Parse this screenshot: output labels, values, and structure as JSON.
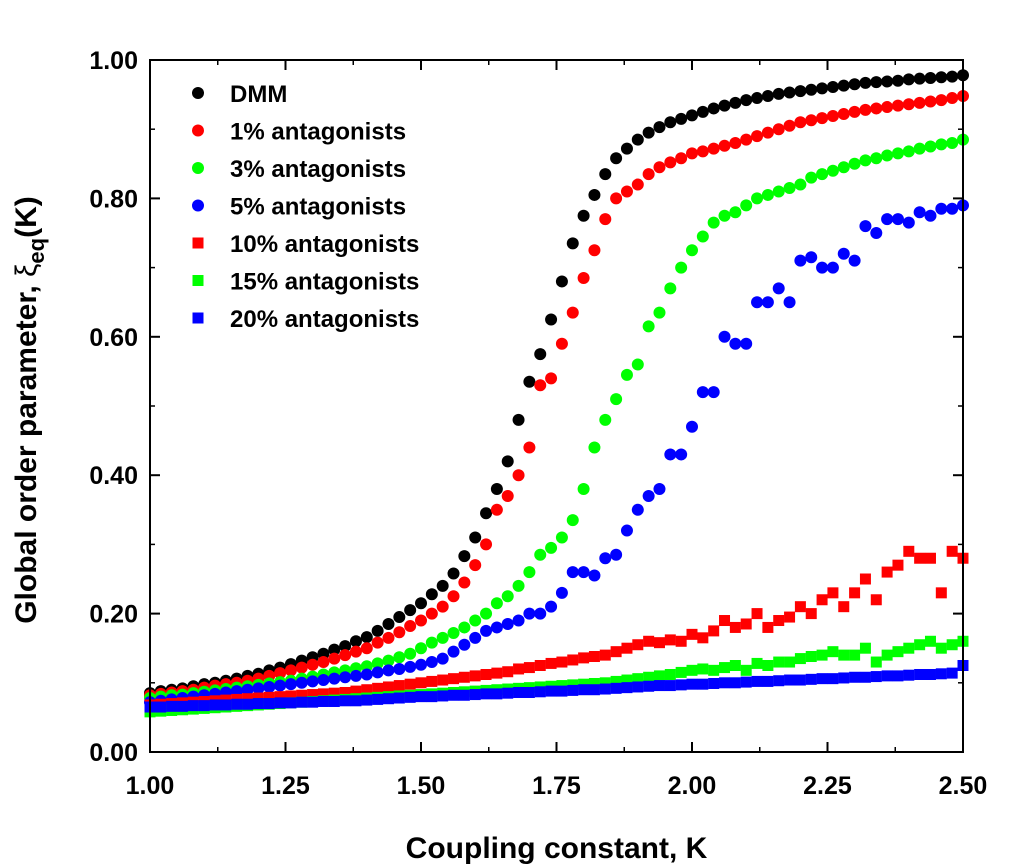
{
  "chart_data": {
    "type": "scatter",
    "title": "",
    "xlabel": "Coupling constant, K",
    "ylabel_parts": {
      "main": "Global order parameter, ",
      "symbol": "ξ",
      "sub": "eq",
      "tail": "(K)"
    },
    "xlim": [
      1.0,
      2.5
    ],
    "ylim": [
      0.0,
      1.0
    ],
    "x_ticks": [
      {
        "value": 1.0,
        "label": "1.00"
      },
      {
        "value": 1.25,
        "label": "1.25"
      },
      {
        "value": 1.5,
        "label": "1.50"
      },
      {
        "value": 1.75,
        "label": "1.75"
      },
      {
        "value": 2.0,
        "label": "2.00"
      },
      {
        "value": 2.25,
        "label": "2.25"
      },
      {
        "value": 2.5,
        "label": "2.50"
      }
    ],
    "y_ticks": [
      {
        "value": 0.0,
        "label": "0.00"
      },
      {
        "value": 0.2,
        "label": "0.20"
      },
      {
        "value": 0.4,
        "label": "0.40"
      },
      {
        "value": 0.6,
        "label": "0.60"
      },
      {
        "value": 0.8,
        "label": "0.80"
      },
      {
        "value": 1.0,
        "label": "1.00"
      }
    ],
    "grid": false,
    "legend_position": "top-left",
    "x_step": 0.02,
    "series": [
      {
        "name": "DMM",
        "color": "#000000",
        "marker": "circle",
        "x": [
          1.0,
          1.02,
          1.04,
          1.06,
          1.08,
          1.1,
          1.12,
          1.14,
          1.16,
          1.18,
          1.2,
          1.22,
          1.24,
          1.26,
          1.28,
          1.3,
          1.32,
          1.34,
          1.36,
          1.38,
          1.4,
          1.42,
          1.44,
          1.46,
          1.48,
          1.5,
          1.52,
          1.54,
          1.56,
          1.58,
          1.6,
          1.62,
          1.64,
          1.66,
          1.68,
          1.7,
          1.72,
          1.74,
          1.76,
          1.78,
          1.8,
          1.82,
          1.84,
          1.86,
          1.88,
          1.9,
          1.92,
          1.94,
          1.96,
          1.98,
          2.0,
          2.02,
          2.04,
          2.06,
          2.08,
          2.1,
          2.12,
          2.14,
          2.16,
          2.18,
          2.2,
          2.22,
          2.24,
          2.26,
          2.28,
          2.3,
          2.32,
          2.34,
          2.36,
          2.38,
          2.4,
          2.42,
          2.44,
          2.46,
          2.48,
          2.5
        ],
        "y": [
          0.085,
          0.088,
          0.09,
          0.092,
          0.095,
          0.098,
          0.1,
          0.103,
          0.106,
          0.11,
          0.113,
          0.118,
          0.122,
          0.127,
          0.132,
          0.137,
          0.142,
          0.148,
          0.153,
          0.16,
          0.166,
          0.175,
          0.185,
          0.195,
          0.205,
          0.215,
          0.228,
          0.24,
          0.258,
          0.283,
          0.31,
          0.345,
          0.38,
          0.42,
          0.48,
          0.535,
          0.575,
          0.625,
          0.68,
          0.735,
          0.775,
          0.805,
          0.835,
          0.858,
          0.872,
          0.885,
          0.895,
          0.903,
          0.91,
          0.915,
          0.92,
          0.925,
          0.93,
          0.934,
          0.938,
          0.942,
          0.945,
          0.948,
          0.951,
          0.953,
          0.955,
          0.957,
          0.959,
          0.961,
          0.963,
          0.965,
          0.967,
          0.968,
          0.969,
          0.97,
          0.972,
          0.973,
          0.974,
          0.975,
          0.976,
          0.978
        ]
      },
      {
        "name": "1% antagonists",
        "color": "#ff0000",
        "marker": "circle",
        "x": [
          1.0,
          1.02,
          1.04,
          1.06,
          1.08,
          1.1,
          1.12,
          1.14,
          1.16,
          1.18,
          1.2,
          1.22,
          1.24,
          1.26,
          1.28,
          1.3,
          1.32,
          1.34,
          1.36,
          1.38,
          1.4,
          1.42,
          1.44,
          1.46,
          1.48,
          1.5,
          1.52,
          1.54,
          1.56,
          1.58,
          1.6,
          1.62,
          1.64,
          1.66,
          1.68,
          1.7,
          1.72,
          1.74,
          1.76,
          1.78,
          1.8,
          1.82,
          1.84,
          1.86,
          1.88,
          1.9,
          1.92,
          1.94,
          1.96,
          1.98,
          2.0,
          2.02,
          2.04,
          2.06,
          2.08,
          2.1,
          2.12,
          2.14,
          2.16,
          2.18,
          2.2,
          2.22,
          2.24,
          2.26,
          2.28,
          2.3,
          2.32,
          2.34,
          2.36,
          2.38,
          2.4,
          2.42,
          2.44,
          2.46,
          2.48,
          2.5
        ],
        "y": [
          0.082,
          0.084,
          0.086,
          0.088,
          0.09,
          0.093,
          0.096,
          0.098,
          0.1,
          0.103,
          0.106,
          0.11,
          0.114,
          0.118,
          0.122,
          0.126,
          0.13,
          0.135,
          0.14,
          0.145,
          0.15,
          0.158,
          0.165,
          0.173,
          0.182,
          0.19,
          0.2,
          0.21,
          0.225,
          0.245,
          0.27,
          0.3,
          0.35,
          0.37,
          0.4,
          0.44,
          0.53,
          0.54,
          0.59,
          0.635,
          0.685,
          0.725,
          0.77,
          0.8,
          0.81,
          0.82,
          0.835,
          0.845,
          0.852,
          0.858,
          0.865,
          0.868,
          0.872,
          0.876,
          0.88,
          0.885,
          0.89,
          0.895,
          0.9,
          0.905,
          0.91,
          0.913,
          0.916,
          0.919,
          0.922,
          0.925,
          0.928,
          0.93,
          0.932,
          0.934,
          0.936,
          0.938,
          0.94,
          0.942,
          0.945,
          0.948
        ]
      },
      {
        "name": "3% antagonists",
        "color": "#00ff00",
        "marker": "circle",
        "x": [
          1.0,
          1.02,
          1.04,
          1.06,
          1.08,
          1.1,
          1.12,
          1.14,
          1.16,
          1.18,
          1.2,
          1.22,
          1.24,
          1.26,
          1.28,
          1.3,
          1.32,
          1.34,
          1.36,
          1.38,
          1.4,
          1.42,
          1.44,
          1.46,
          1.48,
          1.5,
          1.52,
          1.54,
          1.56,
          1.58,
          1.6,
          1.62,
          1.64,
          1.66,
          1.68,
          1.7,
          1.72,
          1.74,
          1.76,
          1.78,
          1.8,
          1.82,
          1.84,
          1.86,
          1.88,
          1.9,
          1.92,
          1.94,
          1.96,
          1.98,
          2.0,
          2.02,
          2.04,
          2.06,
          2.08,
          2.1,
          2.12,
          2.14,
          2.16,
          2.18,
          2.2,
          2.22,
          2.24,
          2.26,
          2.28,
          2.3,
          2.32,
          2.34,
          2.36,
          2.38,
          2.4,
          2.42,
          2.44,
          2.46,
          2.48,
          2.5
        ],
        "y": [
          0.078,
          0.08,
          0.082,
          0.083,
          0.085,
          0.087,
          0.089,
          0.091,
          0.093,
          0.095,
          0.097,
          0.099,
          0.101,
          0.103,
          0.106,
          0.109,
          0.112,
          0.115,
          0.118,
          0.121,
          0.124,
          0.128,
          0.132,
          0.137,
          0.142,
          0.15,
          0.158,
          0.165,
          0.172,
          0.18,
          0.19,
          0.2,
          0.215,
          0.225,
          0.24,
          0.26,
          0.285,
          0.295,
          0.31,
          0.335,
          0.38,
          0.44,
          0.48,
          0.51,
          0.545,
          0.56,
          0.615,
          0.635,
          0.67,
          0.7,
          0.725,
          0.745,
          0.765,
          0.775,
          0.78,
          0.79,
          0.8,
          0.805,
          0.81,
          0.815,
          0.82,
          0.83,
          0.835,
          0.84,
          0.845,
          0.85,
          0.855,
          0.858,
          0.862,
          0.865,
          0.868,
          0.872,
          0.875,
          0.878,
          0.88,
          0.885
        ]
      },
      {
        "name": "5% antagonists",
        "color": "#0000ff",
        "marker": "circle",
        "x": [
          1.0,
          1.02,
          1.04,
          1.06,
          1.08,
          1.1,
          1.12,
          1.14,
          1.16,
          1.18,
          1.2,
          1.22,
          1.24,
          1.26,
          1.28,
          1.3,
          1.32,
          1.34,
          1.36,
          1.38,
          1.4,
          1.42,
          1.44,
          1.46,
          1.48,
          1.5,
          1.52,
          1.54,
          1.56,
          1.58,
          1.6,
          1.62,
          1.64,
          1.66,
          1.68,
          1.7,
          1.72,
          1.74,
          1.76,
          1.78,
          1.8,
          1.82,
          1.84,
          1.86,
          1.88,
          1.9,
          1.92,
          1.94,
          1.96,
          1.98,
          2.0,
          2.02,
          2.04,
          2.06,
          2.08,
          2.1,
          2.12,
          2.14,
          2.16,
          2.18,
          2.2,
          2.22,
          2.24,
          2.26,
          2.28,
          2.3,
          2.32,
          2.34,
          2.36,
          2.38,
          2.4,
          2.42,
          2.44,
          2.46,
          2.48,
          2.5
        ],
        "y": [
          0.072,
          0.074,
          0.076,
          0.078,
          0.08,
          0.082,
          0.084,
          0.086,
          0.088,
          0.09,
          0.092,
          0.094,
          0.096,
          0.098,
          0.1,
          0.102,
          0.104,
          0.106,
          0.108,
          0.11,
          0.112,
          0.115,
          0.118,
          0.12,
          0.123,
          0.126,
          0.13,
          0.135,
          0.145,
          0.155,
          0.165,
          0.175,
          0.18,
          0.185,
          0.19,
          0.2,
          0.2,
          0.21,
          0.23,
          0.26,
          0.26,
          0.255,
          0.28,
          0.285,
          0.32,
          0.35,
          0.37,
          0.38,
          0.43,
          0.43,
          0.47,
          0.52,
          0.52,
          0.6,
          0.59,
          0.59,
          0.65,
          0.65,
          0.67,
          0.65,
          0.71,
          0.715,
          0.7,
          0.7,
          0.72,
          0.71,
          0.76,
          0.75,
          0.77,
          0.77,
          0.765,
          0.78,
          0.775,
          0.785,
          0.785,
          0.79
        ]
      },
      {
        "name": "10% antagonists",
        "color": "#ff0000",
        "marker": "square",
        "x": [
          1.0,
          1.02,
          1.04,
          1.06,
          1.08,
          1.1,
          1.12,
          1.14,
          1.16,
          1.18,
          1.2,
          1.22,
          1.24,
          1.26,
          1.28,
          1.3,
          1.32,
          1.34,
          1.36,
          1.38,
          1.4,
          1.42,
          1.44,
          1.46,
          1.48,
          1.5,
          1.52,
          1.54,
          1.56,
          1.58,
          1.6,
          1.62,
          1.64,
          1.66,
          1.68,
          1.7,
          1.72,
          1.74,
          1.76,
          1.78,
          1.8,
          1.82,
          1.84,
          1.86,
          1.88,
          1.9,
          1.92,
          1.94,
          1.96,
          1.98,
          2.0,
          2.02,
          2.04,
          2.06,
          2.08,
          2.1,
          2.12,
          2.14,
          2.16,
          2.18,
          2.2,
          2.22,
          2.24,
          2.26,
          2.28,
          2.3,
          2.32,
          2.34,
          2.36,
          2.38,
          2.4,
          2.42,
          2.44,
          2.46,
          2.48,
          2.5
        ],
        "y": [
          0.068,
          0.069,
          0.07,
          0.071,
          0.072,
          0.073,
          0.074,
          0.075,
          0.076,
          0.077,
          0.078,
          0.079,
          0.08,
          0.081,
          0.082,
          0.083,
          0.084,
          0.085,
          0.086,
          0.088,
          0.09,
          0.092,
          0.094,
          0.096,
          0.098,
          0.1,
          0.102,
          0.104,
          0.106,
          0.108,
          0.11,
          0.112,
          0.114,
          0.116,
          0.12,
          0.122,
          0.125,
          0.128,
          0.13,
          0.133,
          0.136,
          0.138,
          0.14,
          0.145,
          0.15,
          0.155,
          0.16,
          0.158,
          0.162,
          0.16,
          0.17,
          0.165,
          0.175,
          0.19,
          0.18,
          0.185,
          0.2,
          0.18,
          0.19,
          0.195,
          0.21,
          0.2,
          0.22,
          0.23,
          0.21,
          0.23,
          0.25,
          0.22,
          0.26,
          0.27,
          0.29,
          0.28,
          0.28,
          0.23,
          0.29,
          0.28
        ]
      },
      {
        "name": "15% antagonists",
        "color": "#00ff00",
        "marker": "square",
        "x": [
          1.0,
          1.02,
          1.04,
          1.06,
          1.08,
          1.1,
          1.12,
          1.14,
          1.16,
          1.18,
          1.2,
          1.22,
          1.24,
          1.26,
          1.28,
          1.3,
          1.32,
          1.34,
          1.36,
          1.38,
          1.4,
          1.42,
          1.44,
          1.46,
          1.48,
          1.5,
          1.52,
          1.54,
          1.56,
          1.58,
          1.6,
          1.62,
          1.64,
          1.66,
          1.68,
          1.7,
          1.72,
          1.74,
          1.76,
          1.78,
          1.8,
          1.82,
          1.84,
          1.86,
          1.88,
          1.9,
          1.92,
          1.94,
          1.96,
          1.98,
          2.0,
          2.02,
          2.04,
          2.06,
          2.08,
          2.1,
          2.12,
          2.14,
          2.16,
          2.18,
          2.2,
          2.22,
          2.24,
          2.26,
          2.28,
          2.3,
          2.32,
          2.34,
          2.36,
          2.38,
          2.4,
          2.42,
          2.44,
          2.46,
          2.48,
          2.5
        ],
        "y": [
          0.058,
          0.059,
          0.06,
          0.061,
          0.062,
          0.063,
          0.064,
          0.065,
          0.066,
          0.067,
          0.068,
          0.069,
          0.07,
          0.071,
          0.072,
          0.073,
          0.074,
          0.075,
          0.076,
          0.077,
          0.078,
          0.079,
          0.08,
          0.081,
          0.082,
          0.083,
          0.084,
          0.085,
          0.086,
          0.087,
          0.088,
          0.089,
          0.09,
          0.091,
          0.092,
          0.093,
          0.094,
          0.095,
          0.096,
          0.097,
          0.098,
          0.099,
          0.1,
          0.102,
          0.104,
          0.106,
          0.108,
          0.11,
          0.112,
          0.115,
          0.118,
          0.12,
          0.118,
          0.122,
          0.125,
          0.118,
          0.128,
          0.125,
          0.13,
          0.13,
          0.135,
          0.138,
          0.14,
          0.145,
          0.14,
          0.14,
          0.15,
          0.13,
          0.14,
          0.145,
          0.15,
          0.155,
          0.16,
          0.15,
          0.155,
          0.16
        ]
      },
      {
        "name": "20% antagonists",
        "color": "#0000ff",
        "marker": "square",
        "x": [
          1.0,
          1.02,
          1.04,
          1.06,
          1.08,
          1.1,
          1.12,
          1.14,
          1.16,
          1.18,
          1.2,
          1.22,
          1.24,
          1.26,
          1.28,
          1.3,
          1.32,
          1.34,
          1.36,
          1.38,
          1.4,
          1.42,
          1.44,
          1.46,
          1.48,
          1.5,
          1.52,
          1.54,
          1.56,
          1.58,
          1.6,
          1.62,
          1.64,
          1.66,
          1.68,
          1.7,
          1.72,
          1.74,
          1.76,
          1.78,
          1.8,
          1.82,
          1.84,
          1.86,
          1.88,
          1.9,
          1.92,
          1.94,
          1.96,
          1.98,
          2.0,
          2.02,
          2.04,
          2.06,
          2.08,
          2.1,
          2.12,
          2.14,
          2.16,
          2.18,
          2.2,
          2.22,
          2.24,
          2.26,
          2.28,
          2.3,
          2.32,
          2.34,
          2.36,
          2.38,
          2.4,
          2.42,
          2.44,
          2.46,
          2.48,
          2.5
        ],
        "y": [
          0.065,
          0.065,
          0.066,
          0.066,
          0.067,
          0.067,
          0.068,
          0.068,
          0.069,
          0.069,
          0.07,
          0.07,
          0.071,
          0.071,
          0.072,
          0.072,
          0.073,
          0.073,
          0.074,
          0.074,
          0.075,
          0.076,
          0.077,
          0.078,
          0.079,
          0.08,
          0.08,
          0.081,
          0.082,
          0.082,
          0.083,
          0.084,
          0.084,
          0.085,
          0.086,
          0.086,
          0.087,
          0.088,
          0.088,
          0.089,
          0.09,
          0.09,
          0.091,
          0.092,
          0.093,
          0.094,
          0.095,
          0.096,
          0.096,
          0.097,
          0.098,
          0.098,
          0.099,
          0.1,
          0.1,
          0.101,
          0.102,
          0.102,
          0.103,
          0.104,
          0.104,
          0.105,
          0.106,
          0.106,
          0.107,
          0.108,
          0.108,
          0.109,
          0.11,
          0.11,
          0.111,
          0.112,
          0.112,
          0.113,
          0.114,
          0.125
        ]
      }
    ]
  }
}
